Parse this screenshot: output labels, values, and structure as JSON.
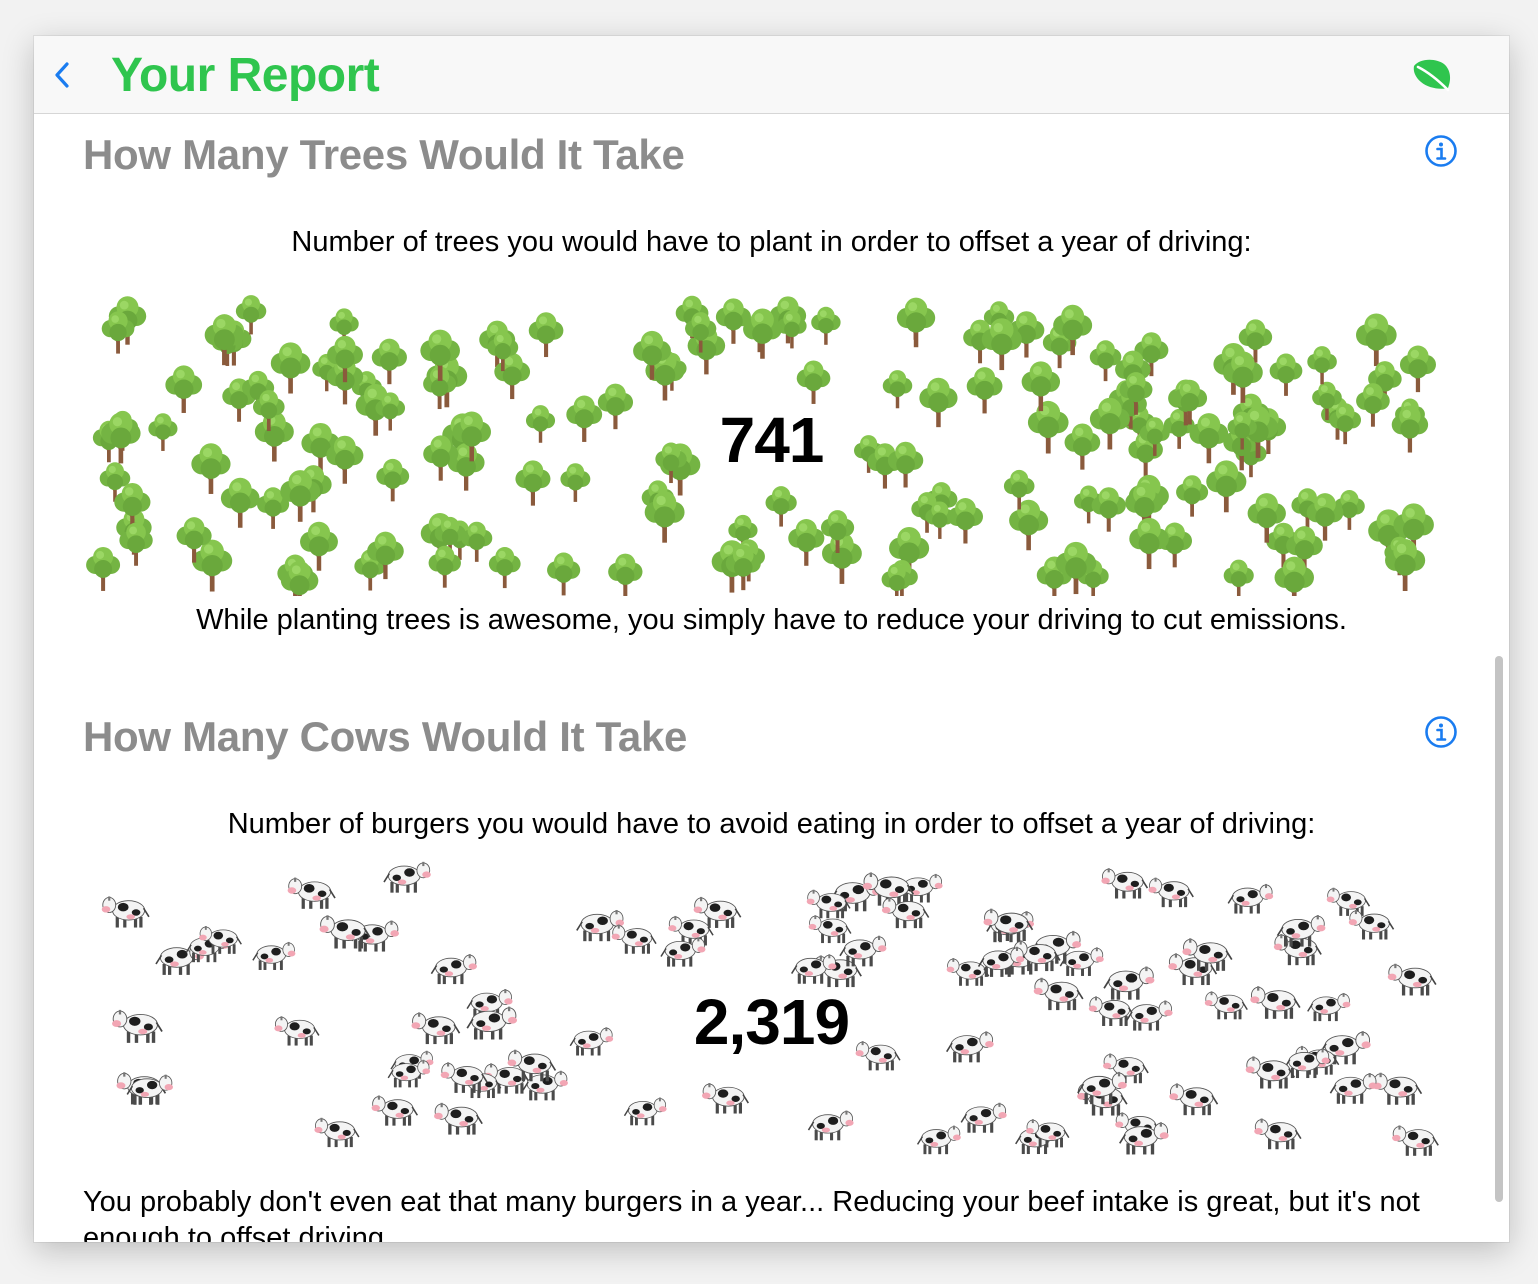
{
  "header": {
    "back_icon": "chevron-left-icon",
    "title": "Your Report",
    "leaf_icon": "leaf-icon",
    "accent": "#2fc54e",
    "link_color": "#1a7cf0"
  },
  "trees_section": {
    "title": "How Many Trees Would It Take",
    "info_icon": "info-circle-icon",
    "subtitle": "Number of trees you would have to plant in order to offset a year of driving:",
    "count": "741",
    "note": "While planting trees is awesome, you simply have to reduce your driving to cut emissions."
  },
  "cows_section": {
    "title": "How Many Cows Would It Take",
    "info_icon": "info-circle-icon",
    "subtitle": "Number of burgers you would have to avoid eating in order to offset a year of driving:",
    "count": "2,319",
    "note": "You probably don't even eat that many burgers in a year... Reducing your beef intake is great, but it's not enough to offset driving."
  }
}
